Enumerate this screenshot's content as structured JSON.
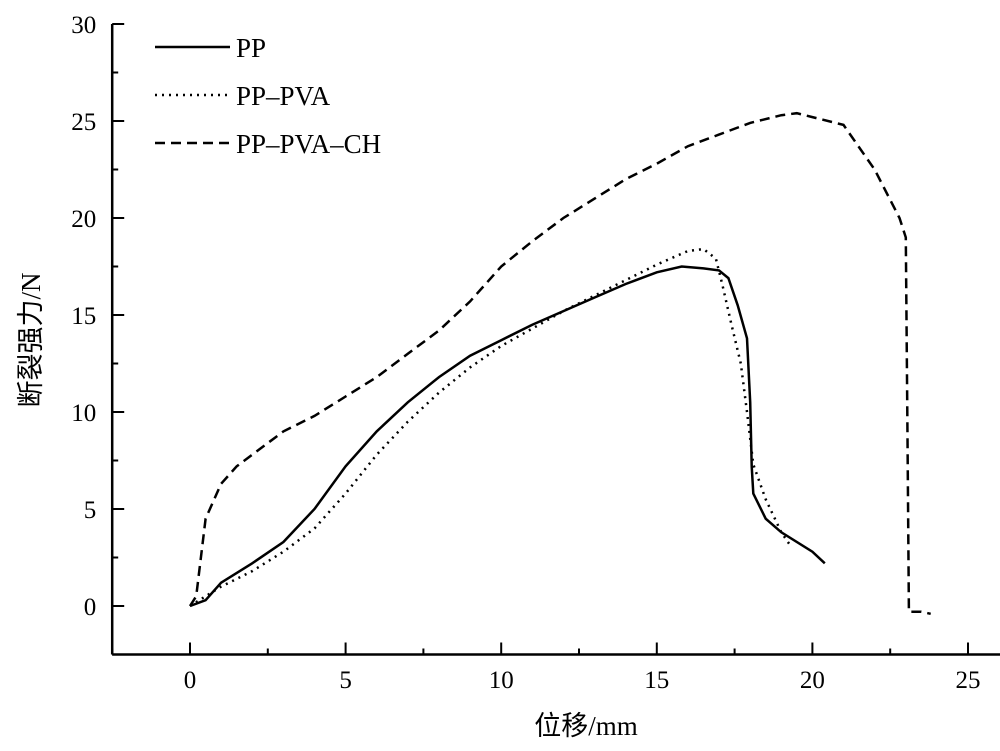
{
  "chart_data": {
    "type": "line",
    "title": "",
    "xlabel": "位移/mm",
    "ylabel": "断裂强力/N",
    "xlim": [
      -2.5,
      25
    ],
    "ylim": [
      -2.5,
      30
    ],
    "xticks": [
      0,
      5,
      10,
      15,
      20,
      25
    ],
    "yticks": [
      0,
      5,
      10,
      15,
      20,
      25,
      30
    ],
    "xtick_labels": [
      "0",
      "5",
      "10",
      "15",
      "20",
      "25"
    ],
    "ytick_labels": [
      "0",
      "5",
      "10",
      "15",
      "20",
      "25",
      "30"
    ],
    "grid": false,
    "legend_position": "top-left",
    "series": [
      {
        "name": "PP",
        "style": "solid",
        "x": [
          0,
          0.5,
          1,
          2,
          3,
          4,
          5,
          6,
          7,
          8,
          9,
          10,
          11,
          12,
          13,
          14,
          15,
          15.8,
          16.5,
          17,
          17.3,
          17.6,
          17.9,
          18,
          18.05,
          18.1,
          18.5,
          19,
          20,
          20.4
        ],
        "y": [
          0,
          0.3,
          1.2,
          2.2,
          3.3,
          5,
          7.2,
          9,
          10.5,
          11.8,
          12.9,
          13.7,
          14.5,
          15.2,
          15.9,
          16.6,
          17.2,
          17.5,
          17.4,
          17.3,
          16.9,
          15.5,
          13.8,
          10.5,
          7.2,
          5.8,
          4.5,
          3.8,
          2.8,
          2.2
        ]
      },
      {
        "name": "PP–PVA",
        "style": "dotted",
        "x": [
          0,
          1,
          2,
          3,
          4,
          5,
          6,
          7,
          8,
          9,
          10,
          11,
          12,
          13,
          14,
          15,
          16,
          16.5,
          16.9,
          17.1,
          17.4,
          17.7,
          17.9,
          18.1,
          18.5,
          19,
          19.3
        ],
        "y": [
          0,
          1,
          1.8,
          2.8,
          4,
          5.8,
          7.8,
          9.5,
          11,
          12.3,
          13.4,
          14.3,
          15.2,
          16,
          16.8,
          17.6,
          18.3,
          18.4,
          17.9,
          16.6,
          14.5,
          12.5,
          10,
          7.3,
          5.5,
          3.8,
          3.1
        ]
      },
      {
        "name": "PP–PVA–CH",
        "style": "dashed",
        "x": [
          0,
          0.2,
          0.5,
          1,
          1.5,
          2,
          3,
          4,
          5,
          6,
          7,
          8,
          9,
          10,
          11,
          12,
          13,
          14,
          15,
          16,
          17,
          18,
          19,
          19.5,
          20,
          21,
          22,
          22.8,
          23,
          23.05,
          23.1,
          23.5,
          23.8
        ],
        "y": [
          0,
          0.5,
          4.5,
          6.3,
          7.2,
          7.8,
          9,
          9.8,
          10.8,
          11.8,
          13,
          14.2,
          15.7,
          17.5,
          18.8,
          20,
          21,
          22,
          22.8,
          23.7,
          24.3,
          24.9,
          25.3,
          25.4,
          25.2,
          24.8,
          22.5,
          20,
          19,
          10,
          -0.3,
          -0.3,
          -0.4
        ]
      }
    ]
  }
}
